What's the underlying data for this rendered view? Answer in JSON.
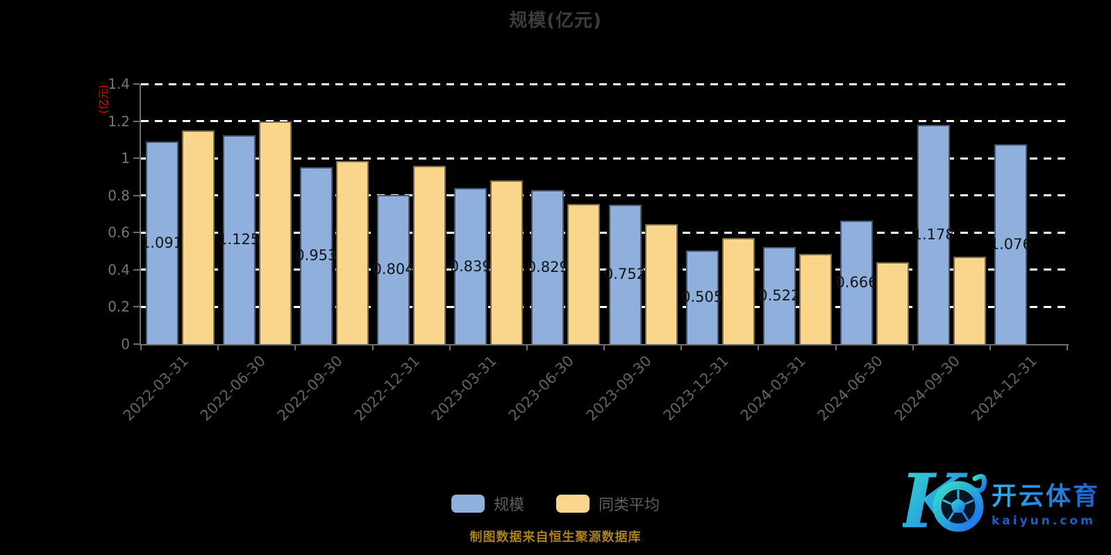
{
  "title": "规模(亿元)",
  "chart_data": {
    "type": "bar",
    "title": "规模(亿元)",
    "y_axis_name": "(亿元)",
    "categories": [
      "2022-03-31",
      "2022-06-30",
      "2022-09-30",
      "2022-12-31",
      "2023-03-31",
      "2023-06-30",
      "2023-09-30",
      "2023-12-31",
      "2024-03-31",
      "2024-06-30",
      "2024-09-30",
      "2024-12-31"
    ],
    "series": [
      {
        "name": "规模",
        "color": "#8FAFDC",
        "values": [
          1.091,
          1.125,
          0.953,
          0.804,
          0.839,
          0.829,
          0.752,
          0.505,
          0.522,
          0.666,
          1.178,
          1.076
        ],
        "labels": [
          "1.091",
          "1.125",
          "0.953",
          "0.804",
          "0.839",
          "0.829",
          "0.752",
          "0.505",
          "0.522",
          "0.666",
          "1.178",
          "1.076"
        ]
      },
      {
        "name": "同类平均",
        "color": "#FAD68C",
        "values": [
          1.15,
          1.2,
          0.985,
          0.96,
          0.88,
          0.755,
          0.645,
          0.57,
          0.485,
          0.44,
          0.47,
          null
        ],
        "labels": []
      }
    ],
    "ylim": [
      0,
      1.4
    ],
    "yticks": [
      "0",
      "0.2",
      "0.4",
      "0.6",
      "0.8",
      "1",
      "1.2",
      "1.4"
    ],
    "grid": "dashed-white-horizontal",
    "legend_position": "bottom",
    "x_label_rotation": 45
  },
  "footer": {
    "source_note": "制图数据来自恒生聚源数据库"
  },
  "logo": {
    "brand": "开云体育",
    "domain": "kaiyun.com"
  },
  "colors": {
    "background": "#000000",
    "grid": "#ffffff",
    "axis": "#6e6e6e",
    "y_tick_label": "#757575",
    "x_tick_label": "#636363",
    "bar_value_label": "#141414",
    "title": "#3d3d3d",
    "legend_text": "#5f5f5f",
    "footer_text": "#a9801b",
    "y_axis_name": "#ff0000",
    "logo_teal": "#3ae0c8",
    "logo_blue": "#1b6ef0"
  }
}
